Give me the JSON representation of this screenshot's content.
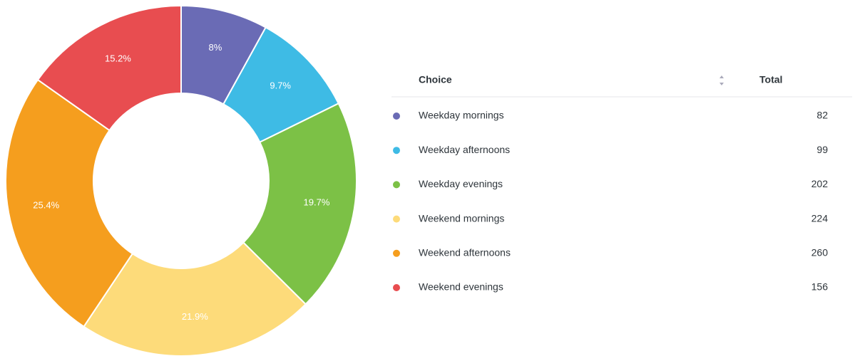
{
  "chart_data": {
    "type": "pie",
    "donut": true,
    "categories": [
      "Weekday mornings",
      "Weekday afternoons",
      "Weekday evenings",
      "Weekend mornings",
      "Weekend afternoons",
      "Weekend evenings"
    ],
    "values": [
      8,
      9.7,
      19.7,
      21.9,
      25.4,
      15.2
    ],
    "value_labels": [
      "8%",
      "9.7%",
      "19.7%",
      "21.9%",
      "25.4%",
      "15.2%"
    ],
    "colors": [
      "#6a6bb5",
      "#3ebbe5",
      "#7cc146",
      "#fddb7a",
      "#f59e1e",
      "#e84d50"
    ],
    "table": {
      "headers": [
        "Choice",
        "Total"
      ],
      "totals": [
        82,
        99,
        202,
        224,
        260,
        156
      ]
    }
  }
}
